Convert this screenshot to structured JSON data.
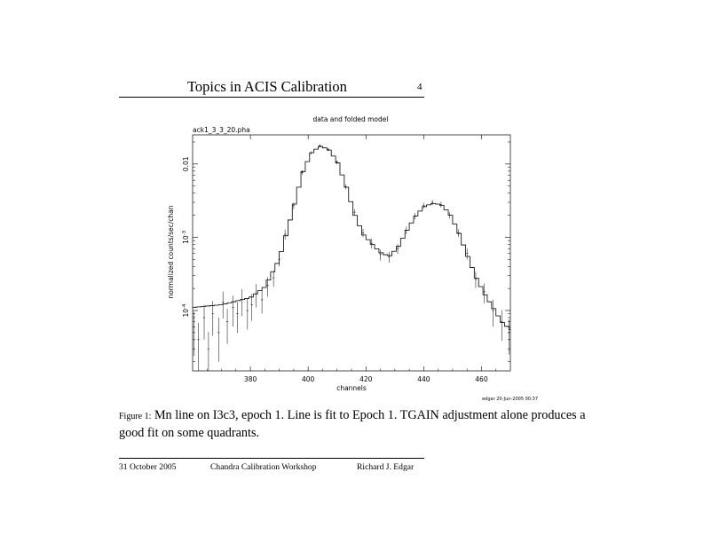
{
  "header": {
    "title": "Topics in ACIS Calibration",
    "page_number": "4"
  },
  "figure": {
    "plot_title": "data and folded model",
    "filename": "ack1_3_3_20.pha",
    "stamp": "edgar 20-Jun-2005 00:37"
  },
  "chart_data": {
    "type": "line",
    "title": "data and folded model",
    "xlabel": "channels",
    "ylabel": "normalized counts/sec/chan",
    "xlim": [
      360,
      470
    ],
    "ylim": [
      1.5e-05,
      0.025
    ],
    "y_scale": "log",
    "x_ticks": [
      380,
      400,
      420,
      440,
      460
    ],
    "y_tick_labels": [
      "10^-4",
      "10^-3",
      "0.01"
    ],
    "series": [
      {
        "style": "histogram",
        "x": [
          360,
          370,
          380,
          385,
          390,
          395,
          398,
          401,
          404,
          407,
          410,
          413,
          416,
          419,
          422,
          425,
          428,
          431,
          434,
          437,
          440,
          443,
          446,
          449,
          452,
          455,
          458,
          461,
          464,
          467,
          470
        ],
        "y": [
          0.00011,
          0.00012,
          0.00015,
          0.00021,
          0.0005,
          0.0026,
          0.0075,
          0.014,
          0.0175,
          0.016,
          0.011,
          0.0052,
          0.0021,
          0.0011,
          0.00082,
          0.00062,
          0.00055,
          0.00072,
          0.0012,
          0.0019,
          0.0026,
          0.0029,
          0.0028,
          0.0021,
          0.0012,
          0.00058,
          0.00029,
          0.00017,
          0.00011,
          7e-05,
          5.5e-05
        ]
      },
      {
        "style": "error-bars",
        "x": [
          360.5,
          362,
          364,
          365.5,
          367,
          369,
          370.5,
          372,
          374,
          375.5,
          377,
          379,
          380.5,
          382,
          384,
          386,
          388,
          390,
          392,
          395,
          398,
          401,
          404,
          407,
          410,
          413,
          416,
          419,
          422,
          425,
          428,
          431,
          434,
          437,
          440,
          443,
          446,
          449,
          452,
          455,
          458,
          461,
          464,
          467,
          469.5
        ],
        "y": [
          6e-05,
          4e-05,
          8e-05,
          3e-05,
          9e-05,
          5e-05,
          0.00013,
          7e-05,
          0.00011,
          9e-05,
          0.00014,
          0.0001,
          0.00012,
          0.00017,
          0.00014,
          0.00022,
          0.00028,
          0.0005,
          0.0011,
          0.0027,
          0.0077,
          0.0142,
          0.0178,
          0.0158,
          0.0106,
          0.0049,
          0.0022,
          0.00115,
          0.00083,
          0.00058,
          0.00054,
          0.0007,
          0.00125,
          0.00195,
          0.0027,
          0.003,
          0.0028,
          0.002,
          0.00115,
          0.0006,
          0.00027,
          0.00018,
          0.0001,
          7e-05,
          5e-05
        ],
        "err_frac": [
          0.6,
          0.7,
          0.5,
          0.7,
          0.5,
          0.6,
          0.4,
          0.5,
          0.45,
          0.45,
          0.4,
          0.45,
          0.4,
          0.35,
          0.35,
          0.3,
          0.25,
          0.2,
          0.15,
          0.1,
          0.07,
          0.05,
          0.05,
          0.05,
          0.06,
          0.08,
          0.1,
          0.13,
          0.15,
          0.17,
          0.17,
          0.15,
          0.12,
          0.1,
          0.09,
          0.08,
          0.09,
          0.1,
          0.12,
          0.17,
          0.25,
          0.3,
          0.4,
          0.45,
          0.5
        ]
      }
    ]
  },
  "caption": {
    "label": "Figure 1:",
    "text": "Mn line on I3c3, epoch 1.  Line is fit to Epoch 1.  TGAIN adjustment alone produces a good fit on some quadrants."
  },
  "footer": {
    "date": "31 October 2005",
    "workshop": "Chandra Calibration Workshop",
    "author": "Richard J. Edgar"
  }
}
